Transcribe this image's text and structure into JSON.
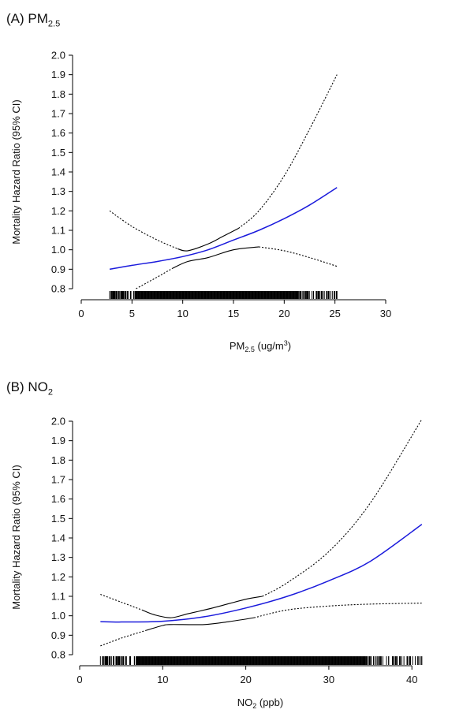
{
  "panels": [
    {
      "title_main": "(A) PM",
      "title_sub": "2.5",
      "xlabel_main": "PM",
      "xlabel_sub": "2.5",
      "xlabel_rest": " (ug/m",
      "xlabel_sup": "3",
      "xlabel_end": ")",
      "ylabel": "Mortality Hazard Ratio (95% CI)"
    },
    {
      "title_main": "(B) NO",
      "title_sub": "2",
      "xlabel_main": "NO",
      "xlabel_sub": "2",
      "xlabel_rest": " (ppb)",
      "xlabel_sup": "",
      "xlabel_end": "",
      "ylabel": "Mortality Hazard Ratio (95% CI)"
    }
  ],
  "chart_data": [
    {
      "type": "line",
      "title": "(A) PM2.5",
      "xlabel": "PM2.5 (ug/m3)",
      "ylabel": "Mortality Hazard Ratio (95% CI)",
      "xlim": [
        0,
        30
      ],
      "ylim": [
        0.8,
        2.0
      ],
      "x_ticks": [
        0,
        5,
        10,
        15,
        20,
        25,
        30
      ],
      "y_ticks": [
        0.8,
        0.9,
        1.0,
        1.1,
        1.2,
        1.3,
        1.4,
        1.5,
        1.6,
        1.7,
        1.8,
        1.9,
        2.0
      ],
      "rug_range": [
        2.8,
        25.2
      ],
      "series": [
        {
          "role": "estimate",
          "color": "#1a1adc",
          "style": "solid",
          "x": [
            2.8,
            5,
            7.5,
            10,
            12.5,
            15,
            17.5,
            20,
            22.5,
            25.2
          ],
          "y": [
            0.9,
            0.92,
            0.94,
            0.965,
            1.0,
            1.05,
            1.1,
            1.16,
            1.23,
            1.32
          ]
        },
        {
          "role": "upper_ci",
          "color": "#000000",
          "style": "dotted",
          "x": [
            2.8,
            5,
            7.5,
            9.5
          ],
          "y": [
            1.2,
            1.12,
            1.05,
            1.005
          ]
        },
        {
          "role": "upper_ci",
          "color": "#000000",
          "style": "solid",
          "x": [
            9.5,
            10.5,
            12.5,
            14,
            15.5
          ],
          "y": [
            1.005,
            0.995,
            1.03,
            1.07,
            1.11
          ]
        },
        {
          "role": "upper_ci",
          "color": "#000000",
          "style": "dotted",
          "x": [
            15.5,
            17.5,
            20,
            22.5,
            25.2
          ],
          "y": [
            1.11,
            1.2,
            1.38,
            1.62,
            1.9
          ]
        },
        {
          "role": "lower_ci",
          "color": "#000000",
          "style": "dotted",
          "x": [
            5.4,
            7.5,
            9.0
          ],
          "y": [
            0.8,
            0.86,
            0.905
          ]
        },
        {
          "role": "lower_ci",
          "color": "#000000",
          "style": "solid",
          "x": [
            9.0,
            10.5,
            12.5,
            15,
            17.5
          ],
          "y": [
            0.905,
            0.94,
            0.96,
            1.0,
            1.015
          ]
        },
        {
          "role": "lower_ci",
          "color": "#000000",
          "style": "dotted",
          "x": [
            17.5,
            20,
            22.5,
            25.2
          ],
          "y": [
            1.015,
            0.995,
            0.96,
            0.915
          ]
        }
      ]
    },
    {
      "type": "line",
      "title": "(B) NO2",
      "xlabel": "NO2 (ppb)",
      "ylabel": "Mortality Hazard Ratio (95% CI)",
      "xlim": [
        0,
        41.5
      ],
      "ylim": [
        0.8,
        2.0
      ],
      "x_ticks": [
        0,
        10,
        20,
        30,
        40
      ],
      "y_ticks": [
        0.8,
        0.9,
        1.0,
        1.1,
        1.2,
        1.3,
        1.4,
        1.5,
        1.6,
        1.7,
        1.8,
        1.9,
        2.0
      ],
      "rug_range": [
        2.5,
        41.2
      ],
      "series": [
        {
          "role": "estimate",
          "color": "#1a1adc",
          "style": "solid",
          "x": [
            2.5,
            5,
            10,
            15,
            20,
            25,
            30,
            35,
            41.2
          ],
          "y": [
            0.97,
            0.968,
            0.972,
            0.995,
            1.04,
            1.1,
            1.18,
            1.28,
            1.47
          ]
        },
        {
          "role": "upper_ci",
          "color": "#000000",
          "style": "dotted",
          "x": [
            2.5,
            5,
            7.5
          ],
          "y": [
            1.11,
            1.07,
            1.03
          ]
        },
        {
          "role": "upper_ci",
          "color": "#000000",
          "style": "solid",
          "x": [
            7.5,
            9,
            11,
            13,
            16,
            20,
            22
          ],
          "y": [
            1.03,
            1.005,
            0.99,
            1.01,
            1.04,
            1.085,
            1.1
          ]
        },
        {
          "role": "upper_ci",
          "color": "#000000",
          "style": "dotted",
          "x": [
            22,
            25,
            30,
            35,
            41.2
          ],
          "y": [
            1.1,
            1.17,
            1.33,
            1.58,
            2.01
          ]
        },
        {
          "role": "lower_ci",
          "color": "#000000",
          "style": "dotted",
          "x": [
            2.5,
            5,
            8
          ],
          "y": [
            0.845,
            0.885,
            0.925
          ]
        },
        {
          "role": "lower_ci",
          "color": "#000000",
          "style": "solid",
          "x": [
            8,
            10,
            11,
            15,
            18,
            21
          ],
          "y": [
            0.925,
            0.95,
            0.955,
            0.955,
            0.97,
            0.99
          ]
        },
        {
          "role": "lower_ci",
          "color": "#000000",
          "style": "dotted",
          "x": [
            21,
            25,
            30,
            35,
            41.2
          ],
          "y": [
            0.99,
            1.03,
            1.05,
            1.06,
            1.065
          ]
        }
      ]
    }
  ]
}
